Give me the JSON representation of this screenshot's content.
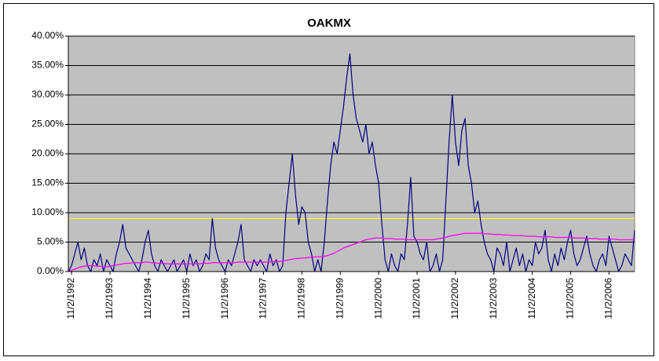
{
  "chart_data": {
    "type": "line",
    "title": "OAKMX",
    "categories": [
      null,
      "11/2/1992",
      null,
      null,
      null,
      null,
      null,
      null,
      null,
      null,
      null,
      null,
      null,
      "11/2/1993",
      null,
      null,
      null,
      null,
      null,
      null,
      null,
      null,
      null,
      null,
      null,
      "11/2/1994",
      null,
      null,
      null,
      null,
      null,
      null,
      null,
      null,
      null,
      null,
      null,
      "11/2/1995",
      null,
      null,
      null,
      null,
      null,
      null,
      null,
      null,
      null,
      null,
      null,
      "11/2/1996",
      null,
      null,
      null,
      null,
      null,
      null,
      null,
      null,
      null,
      null,
      null,
      "11/2/1997",
      null,
      null,
      null,
      null,
      null,
      null,
      null,
      null,
      null,
      null,
      null,
      "11/2/1998",
      null,
      null,
      null,
      null,
      null,
      null,
      null,
      null,
      null,
      null,
      null,
      "11/2/1999",
      null,
      null,
      null,
      null,
      null,
      null,
      null,
      null,
      null,
      null,
      null,
      "11/2/2000",
      null,
      null,
      null,
      null,
      null,
      null,
      null,
      null,
      null,
      null,
      null,
      "11/2/2001",
      null,
      null,
      null,
      null,
      null,
      null,
      null,
      null,
      null,
      null,
      null,
      "11/2/2002",
      null,
      null,
      null,
      null,
      null,
      null,
      null,
      null,
      null,
      null,
      null,
      "11/2/2003",
      null,
      null,
      null,
      null,
      null,
      null,
      null,
      null,
      null,
      null,
      null,
      "11/2/2004",
      null,
      null,
      null,
      null,
      null,
      null,
      null,
      null,
      null,
      null,
      null,
      "11/2/2005",
      null,
      null,
      null,
      null,
      null,
      null,
      null,
      null,
      null,
      null,
      null,
      "11/2/2006",
      null,
      null,
      null,
      null,
      null,
      null,
      null,
      null
    ],
    "series": [
      {
        "color": "#000080",
        "values": [
          0,
          1,
          3,
          5,
          2,
          4,
          1,
          0,
          2,
          1,
          3,
          0,
          2,
          1,
          0,
          3,
          5,
          8,
          4,
          3,
          2,
          1,
          0,
          2,
          5,
          7,
          3,
          1,
          0,
          2,
          1,
          0,
          1,
          2,
          0,
          1,
          2,
          0,
          3,
          1,
          2,
          0,
          1,
          3,
          2,
          9,
          4,
          2,
          1,
          0,
          2,
          1,
          3,
          5,
          8,
          2,
          1,
          0,
          2,
          1,
          2,
          1,
          0,
          3,
          1,
          2,
          0,
          1,
          10,
          15,
          20,
          13,
          8,
          11,
          10,
          5,
          3,
          0,
          2,
          0,
          5,
          12,
          18,
          22,
          20,
          24,
          28,
          33,
          37,
          30,
          26,
          24,
          22,
          25,
          20,
          22,
          18,
          15,
          8,
          2,
          0,
          3,
          1,
          0,
          3,
          2,
          8,
          16,
          6,
          5,
          3,
          2,
          5,
          0,
          1,
          3,
          0,
          2,
          12,
          22,
          30,
          22,
          18,
          24,
          26,
          18,
          15,
          10,
          12,
          8,
          5,
          3,
          2,
          0,
          4,
          3,
          1,
          5,
          0,
          2,
          4,
          1,
          3,
          0,
          2,
          1,
          5,
          3,
          4,
          7,
          2,
          0,
          3,
          1,
          4,
          2,
          5,
          7,
          3,
          1,
          2,
          4,
          6,
          3,
          1,
          0,
          2,
          3,
          1,
          6,
          4,
          2,
          0,
          1,
          3,
          2,
          1,
          7
        ]
      },
      {
        "color": "#ff00ff",
        "values": [
          0,
          0.2,
          0.4,
          0.6,
          0.8,
          0.9,
          1,
          1,
          1,
          0.9,
          0.9,
          0.8,
          0.8,
          0.9,
          1,
          1.1,
          1.2,
          1.3,
          1.4,
          1.4,
          1.5,
          1.5,
          1.5,
          1.5,
          1.6,
          1.6,
          1.5,
          1.5,
          1.4,
          1.4,
          1.4,
          1.3,
          1.3,
          1.3,
          1.3,
          1.3,
          1.3,
          1.3,
          1.3,
          1.3,
          1.3,
          1.3,
          1.4,
          1.4,
          1.4,
          1.5,
          1.5,
          1.5,
          1.5,
          1.5,
          1.5,
          1.5,
          1.5,
          1.6,
          1.6,
          1.6,
          1.6,
          1.6,
          1.6,
          1.6,
          1.6,
          1.6,
          1.6,
          1.6,
          1.7,
          1.7,
          1.7,
          1.8,
          1.9,
          2,
          2.1,
          2.2,
          2.2,
          2.3,
          2.3,
          2.4,
          2.4,
          2.5,
          2.5,
          2.5,
          2.6,
          2.7,
          2.9,
          3.1,
          3.4,
          3.7,
          4,
          4.2,
          4.4,
          4.6,
          4.8,
          5,
          5.2,
          5.4,
          5.5,
          5.6,
          5.7,
          5.7,
          5.7,
          5.6,
          5.6,
          5.6,
          5.5,
          5.5,
          5.5,
          5.5,
          5.4,
          5.4,
          5.4,
          5.4,
          5.4,
          5.4,
          5.4,
          5.4,
          5.4,
          5.5,
          5.6,
          5.7,
          5.8,
          6,
          6.1,
          6.2,
          6.3,
          6.4,
          6.5,
          6.5,
          6.5,
          6.5,
          6.5,
          6.5,
          6.4,
          6.4,
          6.4,
          6.3,
          6.3,
          6.3,
          6.2,
          6.2,
          6.2,
          6.1,
          6.1,
          6.1,
          6.1,
          6,
          6,
          6,
          6,
          5.9,
          5.9,
          5.9,
          5.9,
          5.9,
          5.8,
          5.8,
          5.8,
          5.8,
          5.8,
          5.8,
          5.7,
          5.7,
          5.7,
          5.7,
          5.6,
          5.6,
          5.6,
          5.6,
          5.5,
          5.5,
          5.5,
          5.5,
          5.5,
          5.5,
          5.4,
          5.4,
          5.4,
          5.4,
          5.4,
          5.4
        ]
      }
    ],
    "reference_line": {
      "value": 9,
      "color": "#ffff00"
    },
    "ylim": [
      0,
      40
    ],
    "yticks": [
      {
        "value": 0,
        "label": "0.00%"
      },
      {
        "value": 5,
        "label": "5.00%"
      },
      {
        "value": 10,
        "label": "10.00%"
      },
      {
        "value": 15,
        "label": "15.00%"
      },
      {
        "value": 20,
        "label": "20.00%"
      },
      {
        "value": 25,
        "label": "25.00%"
      },
      {
        "value": 30,
        "label": "30.00%"
      },
      {
        "value": 35,
        "label": "35.00%"
      },
      {
        "value": 40,
        "label": "40.00%"
      }
    ],
    "grid": true,
    "plot_background": "#c0c0c0"
  }
}
